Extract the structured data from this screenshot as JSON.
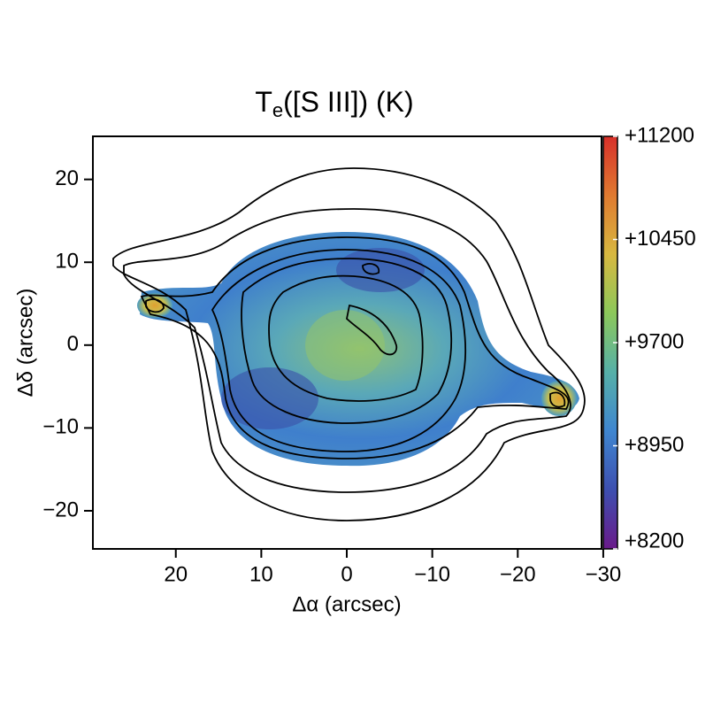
{
  "chart_data": {
    "type": "image",
    "title": "T",
    "title_subscript": "e",
    "title_suffix": "([S III]) (K)",
    "xlabel": "Δα (arcsec)",
    "ylabel": "Δδ (arcsec)",
    "xlim": [
      29.7,
      -29.8
    ],
    "ylim": [
      -24.6,
      25.2
    ],
    "xticks": [
      20,
      10,
      0,
      {
        "value": -10,
        "label": "−10"
      },
      {
        "value": -20,
        "label": "−20"
      },
      {
        "value": -30,
        "label": "−30"
      }
    ],
    "yticks": [
      20,
      10,
      0,
      {
        "value": -10,
        "label": "−10"
      },
      {
        "value": -20,
        "label": "−20"
      }
    ],
    "clim": [
      8200,
      11200
    ],
    "cticks": [
      {
        "value": 11200,
        "label": "+11200"
      },
      {
        "value": 10450,
        "label": "+10450"
      },
      {
        "value": 9700,
        "label": "+9700"
      },
      {
        "value": 8950,
        "label": "+8950"
      },
      {
        "value": 8200,
        "label": "+8200"
      }
    ],
    "colormap": [
      "#6a1a8a",
      "#3d4fb0",
      "#3f86d0",
      "#56b0a8",
      "#8cc85a",
      "#d8b840",
      "#e07a30",
      "#d8302a"
    ]
  }
}
